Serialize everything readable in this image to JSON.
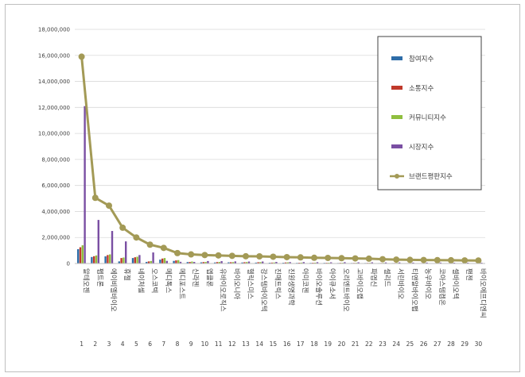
{
  "chart_data": {
    "type": "bar",
    "title": "",
    "xlabel": "",
    "ylabel": "",
    "ylim": [
      0,
      18000000
    ],
    "yticks": [
      "0",
      "2,000,000",
      "4,000,000",
      "6,000,000",
      "8,000,000",
      "10,000,000",
      "12,000,000",
      "14,000,000",
      "16,000,000",
      "18,000,000"
    ],
    "grid": true,
    "legend_position": "right",
    "numbers": [
      "1",
      "2",
      "3",
      "4",
      "5",
      "6",
      "7",
      "8",
      "9",
      "10",
      "11",
      "12",
      "13",
      "14",
      "15",
      "16",
      "17",
      "18",
      "19",
      "20",
      "21",
      "22",
      "23",
      "24",
      "25",
      "26",
      "27",
      "28",
      "29",
      "30"
    ],
    "categories": [
      "알테오젠",
      "펩트론",
      "에이비엘바이오",
      "휴젤",
      "네이처셀",
      "오스코텍",
      "메디톡스",
      "메디포스트",
      "신라젠",
      "엡클론",
      "유바이오로직스",
      "바이오니아",
      "헬릭스미스",
      "강스템바이오텍",
      "진매트릭스",
      "진원생명과학",
      "아미코젠",
      "바이오솔루션",
      "아이큐소서",
      "오리엔트바이오",
      "고바이오랩",
      "파멥신",
      "셀리드",
      "서린바이오",
      "티앤알바이오팹",
      "농우바이오",
      "코아스템켐온",
      "셀바이오텍",
      "팬젠",
      "바이오에프디엔씨"
    ],
    "series": [
      {
        "name": "참여지수",
        "color": "#2e6da8",
        "type": "bar",
        "values": [
          1100000,
          500000,
          550000,
          160000,
          420000,
          120000,
          300000,
          200000,
          110000,
          90000,
          80000,
          90000,
          80000,
          70000,
          60000,
          60000,
          50000,
          50000,
          50000,
          40000,
          40000,
          40000,
          35000,
          35000,
          30000,
          30000,
          30000,
          30000,
          25000,
          25000
        ]
      },
      {
        "name": "소통지수",
        "color": "#c0392b",
        "type": "bar",
        "values": [
          1250000,
          560000,
          650000,
          420000,
          480000,
          160000,
          380000,
          240000,
          120000,
          110000,
          110000,
          100000,
          100000,
          100000,
          70000,
          80000,
          60000,
          60000,
          55000,
          50000,
          45000,
          45000,
          40000,
          40000,
          35000,
          35000,
          35000,
          35000,
          30000,
          30000
        ]
      },
      {
        "name": "커뮤니티지수",
        "color": "#8fbf3f",
        "type": "bar",
        "values": [
          1400000,
          620000,
          700000,
          460000,
          520000,
          190000,
          420000,
          260000,
          150000,
          120000,
          120000,
          110000,
          110000,
          110000,
          80000,
          90000,
          70000,
          65000,
          60000,
          55000,
          50000,
          50000,
          45000,
          45000,
          40000,
          40000,
          40000,
          40000,
          35000,
          35000
        ]
      },
      {
        "name": "시장지수",
        "color": "#7a4fa3",
        "type": "bar",
        "values": [
          12100000,
          3350000,
          2500000,
          1700000,
          650000,
          850000,
          200000,
          130000,
          120000,
          190000,
          180000,
          160000,
          150000,
          150000,
          120000,
          110000,
          110000,
          100000,
          90000,
          100000,
          90000,
          90000,
          80000,
          80000,
          70000,
          70000,
          70000,
          60000,
          60000,
          60000
        ]
      },
      {
        "name": "브랜드평판지수",
        "color": "#a39a56",
        "type": "line",
        "values": [
          15900000,
          5050000,
          4450000,
          2750000,
          2000000,
          1450000,
          1200000,
          800000,
          700000,
          650000,
          620000,
          590000,
          560000,
          550000,
          520000,
          490000,
          470000,
          440000,
          430000,
          410000,
          390000,
          370000,
          330000,
          300000,
          280000,
          270000,
          260000,
          250000,
          240000,
          230000
        ]
      }
    ]
  }
}
